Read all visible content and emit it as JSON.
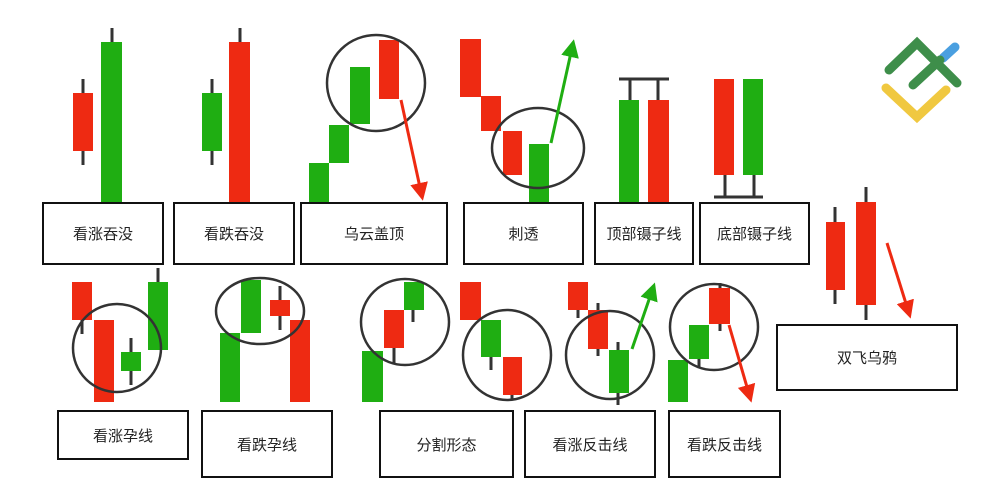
{
  "colors": {
    "bullish": "#1fae12",
    "bearish": "#ee2a12",
    "wick": "#333333",
    "circle": "#333333"
  },
  "logo": {
    "colors": [
      "#3e8e4a",
      "#4a9fe0",
      "#f0c840"
    ]
  },
  "patterns": [
    {
      "label": "看涨吞没"
    },
    {
      "label": "看跌吞没"
    },
    {
      "label": "乌云盖顶"
    },
    {
      "label": "刺透"
    },
    {
      "label": "顶部镊子线"
    },
    {
      "label": "底部镊子线"
    },
    {
      "label": "双飞乌鸦"
    },
    {
      "label": "看涨孕线"
    },
    {
      "label": "看跌孕线"
    },
    {
      "label": "分割形态"
    },
    {
      "label": "看涨反击线"
    },
    {
      "label": "看跌反击线"
    }
  ]
}
